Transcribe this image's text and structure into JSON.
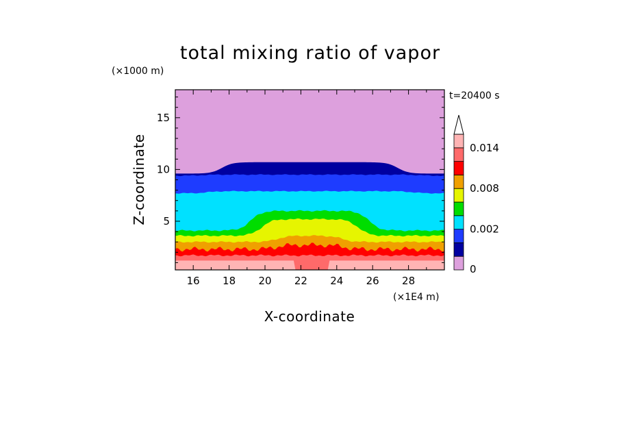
{
  "chart_data": {
    "type": "heatmap",
    "title": "total mixing ratio of vapor",
    "xlabel": "X-coordinate",
    "ylabel": "Z-coordinate",
    "x_unit": "(×1E4 m)",
    "y_unit": "(×1000 m)",
    "time_label": "t=20400 s",
    "xlim": [
      15,
      30
    ],
    "ylim": [
      0.3,
      17.7
    ],
    "x_ticks": [
      "16",
      "18",
      "20",
      "22",
      "24",
      "26",
      "28"
    ],
    "y_ticks": [
      "5",
      "10",
      "15"
    ],
    "colorbar": {
      "labels": [
        "0",
        "0.002",
        "0.008",
        "0.014"
      ],
      "levels": [
        0,
        0.0005,
        0.001,
        0.002,
        0.004,
        0.006,
        0.008,
        0.01,
        0.012,
        0.014,
        0.016
      ],
      "colors": [
        "#dda0dd",
        "#0000a0",
        "#1e3cff",
        "#00e1ff",
        "#00dd00",
        "#e6f500",
        "#f0a000",
        "#ff0000",
        "#ff6a6a",
        "#ffb4b4"
      ],
      "extend": "max"
    },
    "layers": [
      {
        "level": 0.0005,
        "color": "#0000a0",
        "side_top": 9.6,
        "center_top": 10.7,
        "hw": 4.9,
        "dip": [],
        "noise": 0.0
      },
      {
        "level": 0.001,
        "color": "#1e3cff",
        "side_top": 9.4,
        "center_top": 9.5,
        "hw": 6.0,
        "dip": [],
        "noise": 0.05
      },
      {
        "level": 0.002,
        "color": "#00e1ff",
        "side_top": 7.7,
        "center_top": 7.9,
        "hw": 5.7,
        "dip": [],
        "noise": 0.05
      },
      {
        "level": 0.004,
        "color": "#00dd00",
        "side_top": 4.1,
        "center_top": 6.0,
        "hw": 3.3,
        "dip": [],
        "noise": 0.08
      },
      {
        "level": 0.006,
        "color": "#e6f500",
        "side_top": 3.6,
        "center_top": 5.2,
        "hw": 2.7,
        "dip": [],
        "noise": 0.08
      },
      {
        "level": 0.008,
        "color": "#f0a000",
        "side_top": 3.0,
        "center_top": 3.6,
        "hw": 1.8,
        "dip": [],
        "noise": 0.08
      },
      {
        "level": 0.01,
        "color": "#ff0000",
        "side_top": 2.3,
        "center_top": 2.7,
        "hw": 1.9,
        "dip": [],
        "noise": 0.25
      },
      {
        "level": 0.012,
        "color": "#ff6a6a",
        "side_top": 1.7,
        "center_top": 1.7,
        "hw": 1.9,
        "dip": [],
        "noise": 0.1
      },
      {
        "level": 0.014,
        "color": "#ffb4b4",
        "side_top": 1.2,
        "center_top": 1.2,
        "hw": 1.0,
        "dip": [
          21.6,
          23.6
        ],
        "noise": 0.0
      }
    ]
  }
}
